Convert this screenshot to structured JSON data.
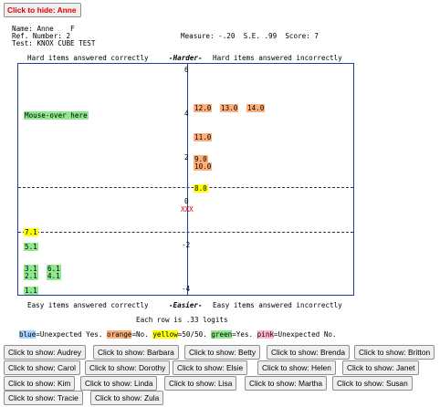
{
  "hide_button_label": "Click to hide: Anne",
  "header": {
    "name_label": "Name:",
    "name_value": "Anne",
    "gender": "F",
    "ref_label": "Ref. Number:",
    "ref_value": "2",
    "test_label": "Test:",
    "test_value": "KNOX CUBE TEST",
    "measure_label": "Measure:",
    "measure_value": "-.20",
    "se_label": "S.E.",
    "se_value": ".99",
    "score_label": "Score:",
    "score_value": "7"
  },
  "map": {
    "top_left": "Hard items answered correctly",
    "top_center": "-Harder-",
    "top_right": "Hard items answered incorrectly",
    "bottom_left": "Easy items answered correctly",
    "bottom_center": "-Easier-",
    "bottom_right": "Easy items answered incorrectly",
    "mouseover": "Mouse-over here",
    "person_marker": "XXX",
    "axis_ticks": [
      "6",
      "4",
      "2",
      "0",
      "-2",
      "-4"
    ],
    "right_items": [
      {
        "label": "12.0",
        "color": "orange"
      },
      {
        "label": "13.0",
        "color": "orange"
      },
      {
        "label": "14.0",
        "color": "orange"
      },
      {
        "label": "11.0",
        "color": "orange"
      },
      {
        "label": "9.0",
        "color": "orange"
      },
      {
        "label": "10.0",
        "color": "orange"
      },
      {
        "label": "8.0",
        "color": "yellow"
      }
    ],
    "left_items": [
      {
        "label": "7.1",
        "color": "yellow"
      },
      {
        "label": "5.1",
        "color": "green"
      },
      {
        "label": "3.1",
        "color": "green"
      },
      {
        "label": "6.1",
        "color": "green"
      },
      {
        "label": "2.1",
        "color": "green"
      },
      {
        "label": "4.1",
        "color": "green"
      },
      {
        "label": "1.1",
        "color": "green"
      }
    ]
  },
  "row_note": "Each row is .33 logits",
  "legend": [
    {
      "key": "blue",
      "text": "=Unexpected Yes.",
      "color": "blue"
    },
    {
      "key": "orange",
      "text": "=No.",
      "color": "orange"
    },
    {
      "key": "yellow",
      "text": "=50/50.",
      "color": "yellow"
    },
    {
      "key": "green",
      "text": "=Yes.",
      "color": "green"
    },
    {
      "key": "pink",
      "text": "=Unexpected No.",
      "color": "pink"
    }
  ],
  "show_buttons": [
    "Click to show: Audrey",
    "Click to show: Barbara",
    "Click to show: Betty",
    "Click to show: Brenda",
    "Click to show: Britton",
    "Click to show: Carol",
    "Click to show: Dorothy",
    "Click to show: Elsie",
    "Click to show: Helen",
    "Click to show: Janet",
    "Click to show: Kim",
    "Click to show: Linda",
    "Click to show: Lisa",
    "Click to show: Martha",
    "Click to show: Susan",
    "Click to show: Tracie",
    "Click to show: Zula"
  ],
  "colors": {
    "green": "#8fe88f",
    "orange": "#ffb07a",
    "yellow": "#ffff00",
    "blue": "#a8d4ff",
    "pink": "#ffb6c8",
    "frame": "#1f3c9e",
    "marker": "#e00000"
  }
}
